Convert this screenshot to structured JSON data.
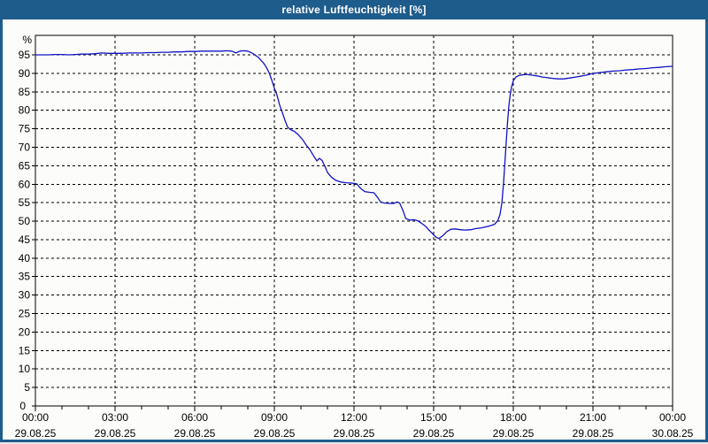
{
  "window": {
    "title": "relative Luftfeuchtigkeit [%]",
    "colors": {
      "titlebar": "#1E5C8C",
      "frame": "#1E5C8C",
      "background": "#FCFDFA",
      "grid": "#000000",
      "text": "#000000"
    }
  },
  "chart_data": {
    "type": "line",
    "title": "relative Luftfeuchtigkeit [%]",
    "ylabel": "%",
    "legend": "none",
    "grid": {
      "style": "dashed",
      "color": "#000000",
      "horizontal_step": 5,
      "vertical_step_hours": 3
    },
    "y_axis": {
      "min": 0,
      "max": 100.3,
      "tick_step": 5,
      "tick_labels": [
        0,
        5,
        10,
        15,
        20,
        25,
        30,
        35,
        40,
        45,
        50,
        55,
        60,
        65,
        70,
        75,
        80,
        85,
        90,
        95
      ],
      "unit_label": "%"
    },
    "x_axis": {
      "range_hours": [
        0,
        24
      ],
      "major_tick_hours": 3,
      "minor_tick_hours": 1,
      "labels": [
        {
          "time": "00:00",
          "date": "29.08.25"
        },
        {
          "time": "03:00",
          "date": "29.08.25"
        },
        {
          "time": "06:00",
          "date": "29.08.25"
        },
        {
          "time": "09:00",
          "date": "29.08.25"
        },
        {
          "time": "12:00",
          "date": "29.08.25"
        },
        {
          "time": "15:00",
          "date": "29.08.25"
        },
        {
          "time": "18:00",
          "date": "29.08.25"
        },
        {
          "time": "21:00",
          "date": "29.08.25"
        },
        {
          "time": "00:00",
          "date": "30.08.25"
        }
      ]
    },
    "series": [
      {
        "name": "relative Luftfeuchtigkeit",
        "color": "#1212C4",
        "points": [
          [
            0,
            95.0
          ],
          [
            0.25,
            95.0
          ],
          [
            0.5,
            95.0
          ],
          [
            0.75,
            95.1
          ],
          [
            1,
            95.1
          ],
          [
            1.25,
            95.0
          ],
          [
            1.5,
            95.1
          ],
          [
            1.75,
            95.2
          ],
          [
            2,
            95.2
          ],
          [
            2.25,
            95.3
          ],
          [
            2.5,
            95.5
          ],
          [
            2.75,
            95.4
          ],
          [
            3,
            95.4
          ],
          [
            3.25,
            95.4
          ],
          [
            3.5,
            95.5
          ],
          [
            3.75,
            95.5
          ],
          [
            4,
            95.5
          ],
          [
            4.25,
            95.6
          ],
          [
            4.5,
            95.6
          ],
          [
            4.75,
            95.7
          ],
          [
            5,
            95.7
          ],
          [
            5.25,
            95.8
          ],
          [
            5.5,
            95.8
          ],
          [
            5.75,
            95.9
          ],
          [
            6,
            95.9
          ],
          [
            6.25,
            96.0
          ],
          [
            6.5,
            96.0
          ],
          [
            6.75,
            96.0
          ],
          [
            7,
            96.0
          ],
          [
            7.2,
            96.1
          ],
          [
            7.4,
            96.0
          ],
          [
            7.55,
            95.5
          ],
          [
            7.7,
            96.0
          ],
          [
            7.85,
            96.1
          ],
          [
            8,
            96.0
          ],
          [
            8.1,
            95.7
          ],
          [
            8.2,
            95.3
          ],
          [
            8.3,
            94.8
          ],
          [
            8.4,
            94.3
          ],
          [
            8.5,
            93.5
          ],
          [
            8.6,
            92.7
          ],
          [
            8.7,
            91.6
          ],
          [
            8.8,
            90.2
          ],
          [
            8.9,
            88.2
          ],
          [
            9,
            86.0
          ],
          [
            9.1,
            84.1
          ],
          [
            9.2,
            81.4
          ],
          [
            9.3,
            79.4
          ],
          [
            9.4,
            77.3
          ],
          [
            9.5,
            75.4
          ],
          [
            9.6,
            74.8
          ],
          [
            9.75,
            74.3
          ],
          [
            9.9,
            73.4
          ],
          [
            10.05,
            72.2
          ],
          [
            10.2,
            70.6
          ],
          [
            10.35,
            69.2
          ],
          [
            10.5,
            67.4
          ],
          [
            10.6,
            66.3
          ],
          [
            10.7,
            67.0
          ],
          [
            10.8,
            66.4
          ],
          [
            10.9,
            64.9
          ],
          [
            11,
            63.2
          ],
          [
            11.15,
            61.9
          ],
          [
            11.3,
            61.1
          ],
          [
            11.5,
            60.6
          ],
          [
            11.7,
            60.4
          ],
          [
            11.9,
            60.3
          ],
          [
            12.1,
            60.1
          ],
          [
            12.25,
            58.9
          ],
          [
            12.4,
            58.0
          ],
          [
            12.6,
            57.8
          ],
          [
            12.75,
            57.7
          ],
          [
            12.9,
            56.3
          ],
          [
            13,
            55.2
          ],
          [
            13.15,
            54.9
          ],
          [
            13.35,
            54.8
          ],
          [
            13.5,
            54.8
          ],
          [
            13.63,
            55.2
          ],
          [
            13.72,
            54.9
          ],
          [
            13.85,
            52.8
          ],
          [
            13.95,
            50.7
          ],
          [
            14.1,
            50.3
          ],
          [
            14.25,
            50.4
          ],
          [
            14.4,
            50.1
          ],
          [
            14.55,
            49.4
          ],
          [
            14.7,
            48.6
          ],
          [
            14.85,
            47.4
          ],
          [
            15,
            46.3
          ],
          [
            15.1,
            45.6
          ],
          [
            15.2,
            45.3
          ],
          [
            15.35,
            46.1
          ],
          [
            15.5,
            47.2
          ],
          [
            15.65,
            47.8
          ],
          [
            15.8,
            47.9
          ],
          [
            16,
            47.7
          ],
          [
            16.2,
            47.6
          ],
          [
            16.4,
            47.7
          ],
          [
            16.6,
            48.0
          ],
          [
            16.8,
            48.2
          ],
          [
            17,
            48.5
          ],
          [
            17.15,
            48.8
          ],
          [
            17.3,
            49.2
          ],
          [
            17.42,
            50.2
          ],
          [
            17.5,
            51.8
          ],
          [
            17.57,
            55.0
          ],
          [
            17.63,
            60.0
          ],
          [
            17.68,
            65.5
          ],
          [
            17.73,
            71.0
          ],
          [
            17.78,
            76.5
          ],
          [
            17.83,
            81.0
          ],
          [
            17.88,
            84.0
          ],
          [
            17.93,
            86.2
          ],
          [
            18,
            88.0
          ],
          [
            18.1,
            89.0
          ],
          [
            18.2,
            89.4
          ],
          [
            18.35,
            89.6
          ],
          [
            18.5,
            89.7
          ],
          [
            18.7,
            89.5
          ],
          [
            18.9,
            89.3
          ],
          [
            19.1,
            89.0
          ],
          [
            19.3,
            88.8
          ],
          [
            19.5,
            88.6
          ],
          [
            19.7,
            88.5
          ],
          [
            19.9,
            88.5
          ],
          [
            20.1,
            88.7
          ],
          [
            20.35,
            89.0
          ],
          [
            20.6,
            89.3
          ],
          [
            20.8,
            89.6
          ],
          [
            21,
            90.0
          ],
          [
            21.25,
            90.2
          ],
          [
            21.5,
            90.4
          ],
          [
            21.75,
            90.6
          ],
          [
            22,
            90.7
          ],
          [
            22.25,
            90.9
          ],
          [
            22.5,
            91.0
          ],
          [
            22.75,
            91.2
          ],
          [
            23,
            91.3
          ],
          [
            23.25,
            91.5
          ],
          [
            23.5,
            91.6
          ],
          [
            23.75,
            91.8
          ],
          [
            24,
            91.9
          ]
        ]
      }
    ]
  }
}
